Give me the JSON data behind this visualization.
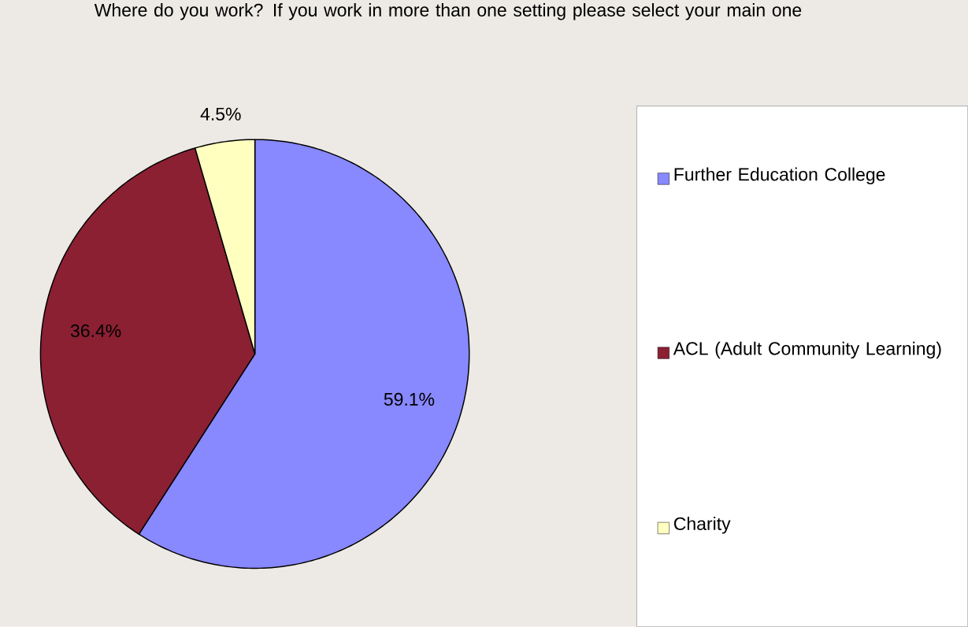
{
  "chart_data": {
    "type": "pie",
    "title": "Where do you work? If you work in more than one setting please select your main one",
    "categories": [
      "Further Education College",
      "ACL (Adult Community Learning)",
      "Charity"
    ],
    "values": [
      59.1,
      36.4,
      4.5
    ],
    "colors": [
      "#8888ff",
      "#8b2033",
      "#ffffc0"
    ],
    "value_labels": [
      "59.1%",
      "36.4%",
      "4.5%"
    ],
    "legend": "right"
  }
}
